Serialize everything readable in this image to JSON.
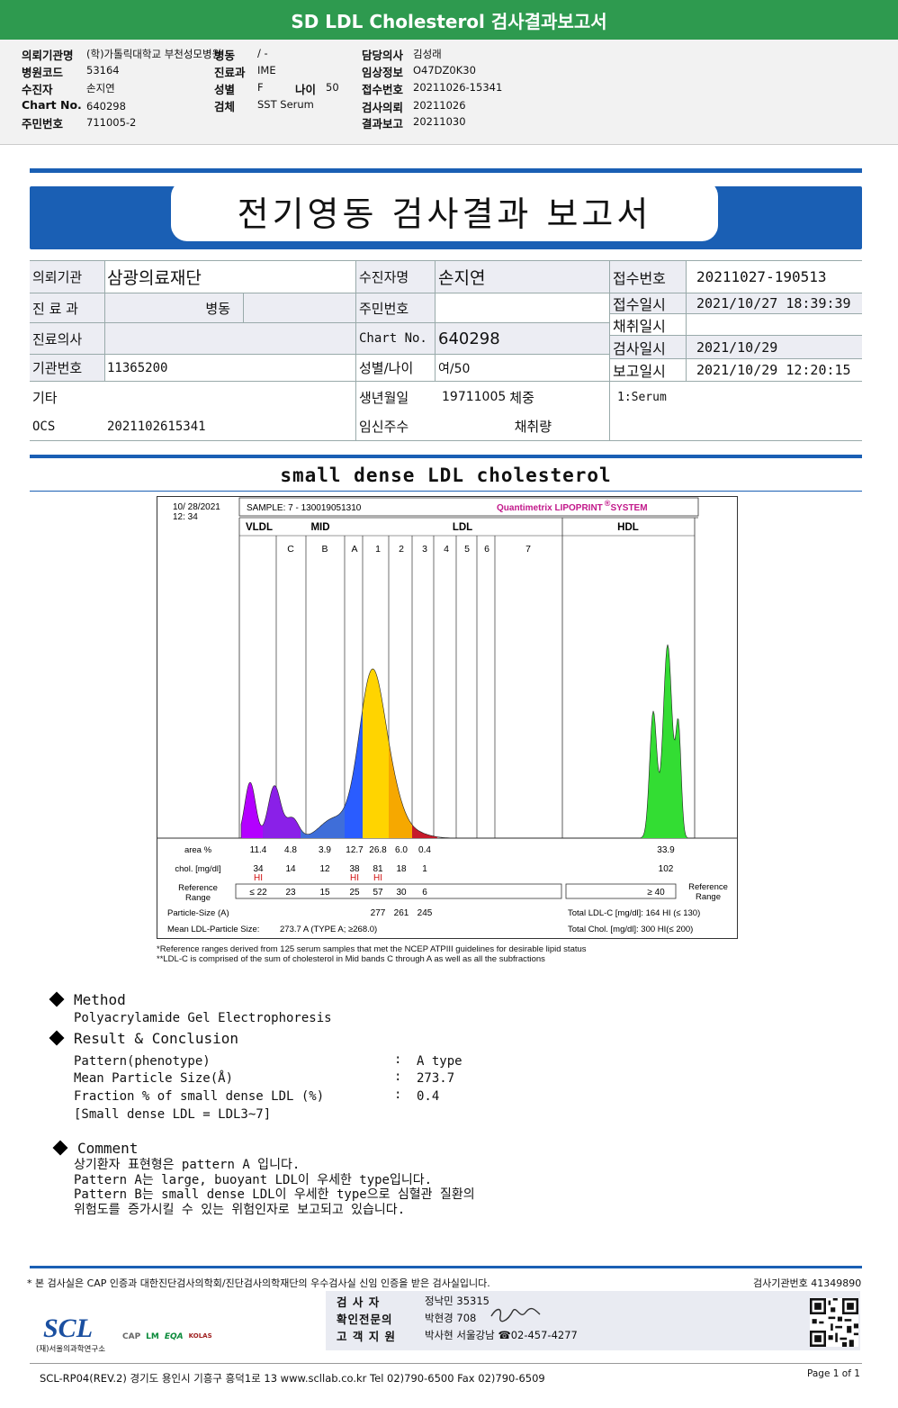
{
  "banner_title": "SD LDL Cholesterol 검사결과보고서",
  "header_info": {
    "col1": [
      {
        "key": "의뢰기관명",
        "value": "(학)가톨릭대학교 부천성모병원"
      },
      {
        "key": "병원코드",
        "value": "53164"
      },
      {
        "key": "수진자",
        "value": "손지연"
      },
      {
        "key": "Chart No.",
        "value": "640298"
      },
      {
        "key": "주민번호",
        "value": "711005-2"
      }
    ],
    "col2": [
      {
        "key": "병동",
        "value": "/ -"
      },
      {
        "key": "진료과",
        "value": "IME"
      },
      {
        "key": "성별",
        "value": "F"
      },
      {
        "key": "검체",
        "value": "SST Serum"
      }
    ],
    "age_key": "나이",
    "age_value": "50",
    "col3": [
      {
        "key": "담당의사",
        "value": "김성래"
      },
      {
        "key": "임상정보",
        "value": "O47DZ0K30"
      },
      {
        "key": "접수번호",
        "value": "20211026-15341"
      },
      {
        "key": "검사의뢰",
        "value": "20211026"
      },
      {
        "key": "결과보고",
        "value": "20211030"
      }
    ]
  },
  "report_title": "전기영동 검사결과 보고서",
  "info_table": {
    "institution_label": "의뢰기관",
    "institution": "삼광의료재단",
    "department_label": "진 료 과",
    "ward": "병동",
    "doctor_label": "진료의사",
    "agency_no_label": "기관번호",
    "agency_no": "11365200",
    "misc_label": "기타",
    "ocs_label": "OCS",
    "ocs": "2021102615341",
    "patient_label": "수진자명",
    "patient": "손지연",
    "rrn_label": "주민번호",
    "chart_label": "Chart No.",
    "chart": "640298",
    "sex_age_label": "성별/나이",
    "sex_age": "여/50",
    "birth_label": "생년월일",
    "birth": "19711005",
    "weight_label": "체중",
    "pregnancy_label": "임신주수",
    "volume_label": "채취량",
    "receipt_no_label": "접수번호",
    "receipt_no": "20211027-190513",
    "receipt_dt_label": "접수일시",
    "receipt_dt": "2021/10/27 18:39:39",
    "collect_label": "채취일시",
    "test_date_label": "검사일시",
    "test_date": "2021/10/29",
    "report_date_label": "보고일시",
    "report_date": "2021/10/29 12:20:15",
    "specimen": "1:Serum"
  },
  "section_title": "small dense LDL cholesterol",
  "chart_data": {
    "type": "area",
    "date": "10/ 28/2021",
    "time": "12: 34",
    "sample": "SAMPLE:    7 - 130019051310",
    "brand": "Quantimetrix LIPOPRINT",
    "brand_suffix": "SYSTEM",
    "groups": [
      "VLDL",
      "MID",
      "LDL",
      "HDL"
    ],
    "bands": [
      "C",
      "B",
      "A",
      "1",
      "2",
      "3",
      "4",
      "5",
      "6",
      "7"
    ],
    "row_labels": {
      "area": "area %",
      "chol": "chol. [mg/dl]",
      "ref": "Reference Range",
      "ref_right": "Reference Range",
      "particle": "Particle-Size (A)",
      "mean": "Mean LDL-Particle Size:"
    },
    "area_pct": [
      "11.4",
      "4.8",
      "3.9",
      "12.7",
      "26.8",
      "6.0",
      "0.4",
      "33.9"
    ],
    "chol": [
      "34",
      "14",
      "12",
      "38",
      "81",
      "18",
      "1",
      "102"
    ],
    "hi_flags": [
      "HI",
      "HI",
      "HI"
    ],
    "ref_range": [
      "≤ 22",
      "23",
      "15",
      "25",
      "57",
      "30",
      "6",
      "≥ 40"
    ],
    "particle_sizes": [
      "277",
      "261",
      "245"
    ],
    "mean_size": "273.7  A   (TYPE A; ≥268.0)",
    "total_ldl": "Total LDL-C  [mg/dl]:   164   HI (≤ 130)",
    "total_chol": "Total Chol.  [mg/dl]:    300   HI(≤ 200)",
    "footnote1": "*Reference ranges derived from 125 serum samples that met the NCEP ATPIII guidelines for desirable lipid status",
    "footnote2": "**LDL-C is comprised of the sum of cholesterol in Mid bands C through A as well as all the subfractions",
    "segment_colors": [
      "#b300ff",
      "#8a20e8",
      "#3f6ed9",
      "#2a5cff",
      "#ffd400",
      "#f6a800",
      "#c61a2a",
      "#33dd33"
    ]
  },
  "method": {
    "heading": "Method",
    "text": "Polyacrylamide Gel Electrophoresis"
  },
  "result": {
    "heading": "Result & Conclusion",
    "rows": [
      {
        "label": "Pattern(phenotype)",
        "value": "A type"
      },
      {
        "label": "Mean Particle Size(Å)",
        "value": "273.7"
      },
      {
        "label": "Fraction % of small dense LDL (%)",
        "value": "0.4"
      }
    ],
    "note": "[Small dense LDL = LDL3~7]"
  },
  "comment": {
    "heading": "Comment",
    "lines": [
      "상기환자 표현형은 pattern A 입니다.",
      "Pattern A는 large, buoyant LDL이 우세한 type입니다.",
      "Pattern B는 small dense LDL이 우세한 type으로 심혈관 질환의",
      "위험도를 증가시킬 수 있는 위험인자로 보고되고 있습니다."
    ]
  },
  "footer": {
    "cert": "* 본 검사실은 CAP 인증과 대한진단검사의학회/진단검사의학재단의 우수검사실 신임 인증을 받은 검사실입니다.",
    "org_no": "검사기관번호  41349890",
    "signers": [
      {
        "role": "검   사   자",
        "name": "정낙민 35315"
      },
      {
        "role": "확인전문의",
        "name": "박현경  708"
      },
      {
        "role": "고 객 지 원",
        "name": "박사현  서울강남  ☎02-457-4277"
      }
    ],
    "lab_name": "(재)서울의과학연구소",
    "logos": [
      "CAP",
      "LM",
      "EQA",
      "KOLAS"
    ],
    "address": "SCL-RP04(REV.2)  경기도 용인시 기흥구 흥덕1로 13  www.scllab.co.kr   Tel 02)790-6500   Fax 02)790-6509",
    "page": "Page 1 of 1"
  }
}
